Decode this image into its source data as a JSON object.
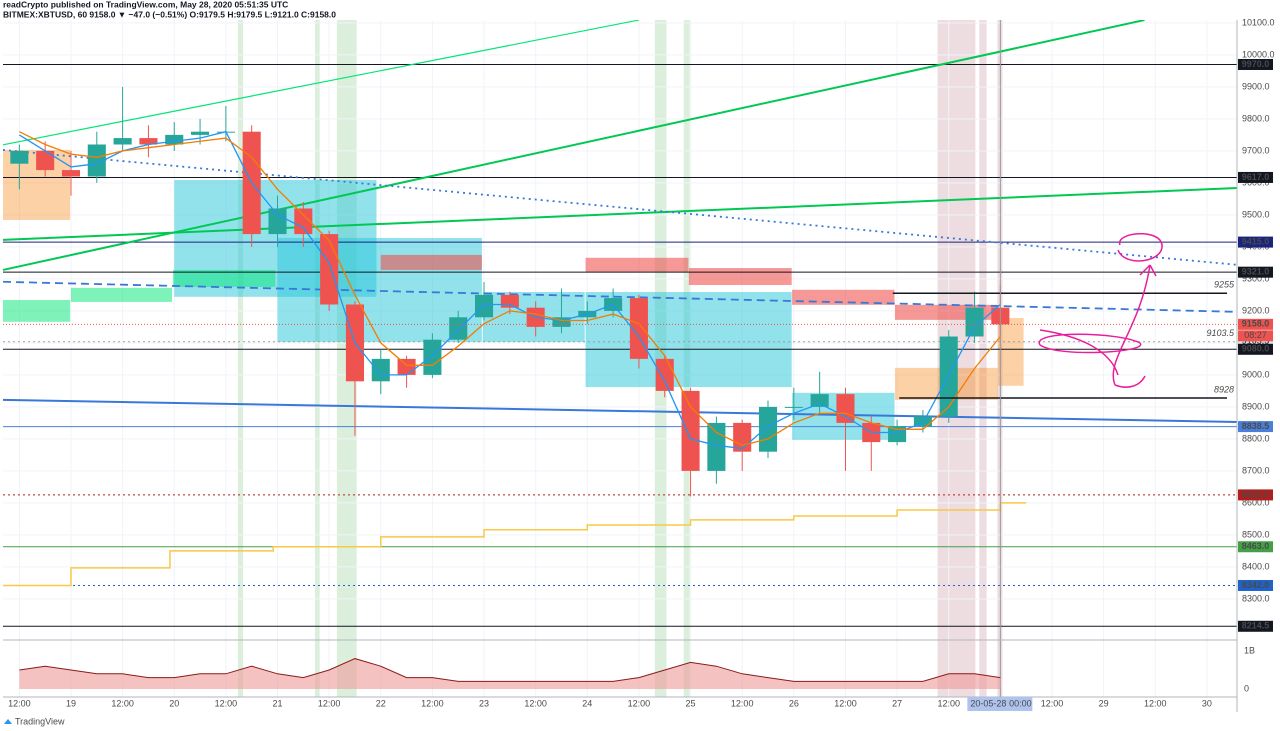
{
  "chart_data": {
    "type": "candlestick",
    "title": "readCrypto published on TradingView.com, May 28, 2020 05:51:35 UTC",
    "subtitle": "BITMEX:XBTUSD, 60  9158.0 ▼ −47.0 (−0.51%) O:9179.5 H:9179.5 L:9121.0 C:9158.0",
    "x": [
      12,
      18,
      24,
      30,
      36,
      42,
      48,
      54,
      60,
      66,
      72,
      78,
      84,
      90,
      96,
      102,
      108,
      114,
      120,
      126,
      132,
      138,
      144,
      150,
      156,
      162,
      168,
      174,
      180,
      186,
      192,
      198,
      204,
      210,
      216,
      222,
      228,
      234,
      240
    ],
    "open": [
      9660,
      9700,
      9640,
      9620,
      9720,
      9740,
      9720,
      9750,
      9760,
      9760,
      9440,
      9520,
      9440,
      9220,
      8980,
      9050,
      9000,
      9110,
      9180,
      9250,
      9210,
      9150,
      9180,
      9200,
      9240,
      9050,
      8950,
      8700,
      8850,
      8760,
      8900,
      8900,
      8940,
      8850,
      8790,
      8840,
      8870,
      9120,
      9210
    ],
    "high": [
      9720,
      9730,
      9700,
      9760,
      9900,
      9780,
      9790,
      9800,
      9840,
      9780,
      9560,
      9540,
      9450,
      9230,
      9080,
      9060,
      9130,
      9200,
      9290,
      9260,
      9230,
      9270,
      9230,
      9270,
      9250,
      9060,
      8960,
      8870,
      8860,
      8920,
      8960,
      9010,
      8960,
      8870,
      8860,
      8890,
      9140,
      9260,
      9280
    ],
    "low": [
      9580,
      9620,
      9560,
      9600,
      9700,
      9680,
      9700,
      9720,
      9730,
      9400,
      9400,
      9400,
      9200,
      8810,
      8940,
      8960,
      8990,
      9100,
      9170,
      9190,
      9120,
      9130,
      9160,
      9180,
      9020,
      8930,
      8620,
      8660,
      8700,
      8740,
      8860,
      8880,
      8700,
      8700,
      8780,
      8820,
      8850,
      9100,
      9121
    ],
    "close": [
      9700,
      9640,
      9620,
      9720,
      9740,
      9720,
      9750,
      9760,
      9760,
      9440,
      9520,
      9440,
      9220,
      8980,
      9050,
      9000,
      9110,
      9180,
      9250,
      9210,
      9150,
      9180,
      9200,
      9240,
      9050,
      8950,
      8700,
      8850,
      8760,
      8900,
      8900,
      8940,
      8850,
      8790,
      8840,
      8870,
      9120,
      9210,
      9158
    ],
    "up_color": "#26a69a",
    "down_color": "#ef5350",
    "xlim": [
      8.2,
      295
    ],
    "xticks": [
      {
        "value": 12,
        "label": "12:00"
      },
      {
        "value": 24,
        "label": "19"
      },
      {
        "value": 36,
        "label": "12:00"
      },
      {
        "value": 48,
        "label": "20"
      },
      {
        "value": 60,
        "label": "12:00"
      },
      {
        "value": 72,
        "label": "21"
      },
      {
        "value": 84,
        "label": "12:00"
      },
      {
        "value": 96,
        "label": "22"
      },
      {
        "value": 108,
        "label": "12:00"
      },
      {
        "value": 120,
        "label": "23"
      },
      {
        "value": 132,
        "label": "12:00"
      },
      {
        "value": 144,
        "label": "24"
      },
      {
        "value": 156,
        "label": "12:00"
      },
      {
        "value": 168,
        "label": "25"
      },
      {
        "value": 180,
        "label": "12:00"
      },
      {
        "value": 192,
        "label": "26"
      },
      {
        "value": 204,
        "label": "12:00"
      },
      {
        "value": 216,
        "label": "27"
      },
      {
        "value": 228,
        "label": "12:00"
      },
      {
        "value": 252,
        "label": "12:00"
      },
      {
        "value": 264,
        "label": "29"
      },
      {
        "value": 276,
        "label": "12:00"
      },
      {
        "value": 288,
        "label": "30"
      }
    ],
    "ylim": [
      8181,
      10109
    ],
    "yticks": [
      {
        "value": 8300,
        "label": "8300.0"
      },
      {
        "value": 8400,
        "label": "8400.0"
      },
      {
        "value": 8500,
        "label": "8500.0"
      },
      {
        "value": 8600,
        "label": "8600.0"
      },
      {
        "value": 8700,
        "label": "8700.0"
      },
      {
        "value": 8800,
        "label": "8800.0"
      },
      {
        "value": 8900,
        "label": "8900.0"
      },
      {
        "value": 9000,
        "label": "9000.0"
      },
      {
        "value": 9100,
        "label": "9100.0"
      },
      {
        "value": 9200,
        "label": "9200.0"
      },
      {
        "value": 9300,
        "label": "9300.0"
      },
      {
        "value": 9400,
        "label": "9400.0"
      },
      {
        "value": 9500,
        "label": "9500.0"
      },
      {
        "value": 9600,
        "label": "9600.0"
      },
      {
        "value": 9700,
        "label": "9700.0"
      },
      {
        "value": 9800,
        "label": "9800.0"
      },
      {
        "value": 9900,
        "label": "9900.0"
      },
      {
        "value": 10000,
        "label": "10000.0"
      },
      {
        "value": 10100,
        "label": "10100.0"
      }
    ],
    "grid": true,
    "highlights": [
      {
        "x": [
          62.8,
          64
        ],
        "color": "rgba(76,175,80,0.2)"
      },
      {
        "x": [
          80.7,
          81.8
        ],
        "color": "rgba(76,175,80,0.2)"
      },
      {
        "x": [
          85.8,
          90.4
        ],
        "color": "rgba(76,175,80,0.2)"
      },
      {
        "x": [
          159.7,
          162.4
        ],
        "color": "rgba(76,175,80,0.2)"
      },
      {
        "x": [
          166.4,
          167.8
        ],
        "color": "rgba(76,175,80,0.2)"
      },
      {
        "x": [
          225.4,
          234.2
        ],
        "color": "rgba(183,120,130,0.25)"
      },
      {
        "x": [
          235.1,
          236.8
        ],
        "color": "rgba(183,120,130,0.25)"
      },
      {
        "x": [
          239.3,
          240.5
        ],
        "color": "rgba(183,120,130,0.25)"
      }
    ],
    "zones": [
      {
        "x": [
          48,
          95
        ],
        "y": [
          9244,
          9609
        ],
        "color": "rgba(38,198,218,0.5)"
      },
      {
        "x": [
          72,
          119.5
        ],
        "y": [
          9103,
          9428
        ],
        "color": "rgba(38,198,218,0.5)"
      },
      {
        "x": [
          119.7,
          143.4
        ],
        "y": [
          9103,
          9259
        ],
        "color": "rgba(38,198,218,0.5)"
      },
      {
        "x": [
          143.6,
          191.5
        ],
        "y": [
          8962,
          9259
        ],
        "color": "rgba(38,198,218,0.5)"
      },
      {
        "x": [
          191.6,
          215.4
        ],
        "y": [
          8797,
          8944
        ],
        "color": "rgba(38,198,218,0.5)"
      },
      {
        "x": [
          96,
          119.5
        ],
        "y": [
          9328,
          9375
        ],
        "color": "rgba(239,83,80,0.6)"
      },
      {
        "x": [
          143.6,
          167.5
        ],
        "y": [
          9322,
          9366
        ],
        "color": "rgba(239,83,80,0.6)"
      },
      {
        "x": [
          167.6,
          191.5
        ],
        "y": [
          9281,
          9334
        ],
        "color": "rgba(239,83,80,0.6)"
      },
      {
        "x": [
          191.6,
          215.4
        ],
        "y": [
          9219,
          9266
        ],
        "color": "rgba(239,83,80,0.6)"
      },
      {
        "x": [
          215.5,
          239.4
        ],
        "y": [
          9172,
          9219
        ],
        "color": "rgba(239,83,80,0.6)"
      },
      {
        "x": [
          8.2,
          23.8
        ],
        "y": [
          9484,
          9703
        ],
        "color": "rgba(245,124,0,0.35)"
      },
      {
        "x": [
          215.5,
          239.4
        ],
        "y": [
          8922,
          9022
        ],
        "color": "rgba(245,124,0,0.35)"
      },
      {
        "x": [
          239.5,
          245.4
        ],
        "y": [
          8966,
          9178
        ],
        "color": "rgba(245,124,0,0.35)"
      },
      {
        "x": [
          8.2,
          23.8
        ],
        "y": [
          9166,
          9234
        ],
        "color": "rgba(0,230,118,0.5)"
      },
      {
        "x": [
          24,
          47.5
        ],
        "y": [
          9228,
          9272
        ],
        "color": "rgba(0,230,118,0.5)"
      },
      {
        "x": [
          47.7,
          71.5
        ],
        "y": [
          9275,
          9328
        ],
        "color": "rgba(0,230,118,0.5)"
      }
    ],
    "trendlines": [
      {
        "x": [
          8.2,
          156
        ],
        "values": [
          9719,
          10109
        ],
        "color": "#00e676",
        "width": 1.2,
        "dash": "none"
      },
      {
        "x": [
          8.2,
          273.5
        ],
        "values": [
          9328,
          10109
        ],
        "color": "#00c853",
        "width": 2,
        "dash": "none"
      },
      {
        "x": [
          8.2,
          295
        ],
        "values": [
          9422,
          9584
        ],
        "color": "#00c853",
        "width": 2,
        "dash": "none"
      },
      {
        "x": [
          8.2,
          295
        ],
        "values": [
          9703,
          9344
        ],
        "color": "#3a78d8",
        "width": 1.8,
        "dash": "2 4"
      },
      {
        "x": [
          8.2,
          295
        ],
        "values": [
          9291,
          9197
        ],
        "color": "#3a78d8",
        "width": 1.8,
        "dash": "8 5"
      },
      {
        "x": [
          8.2,
          295
        ],
        "values": [
          8922,
          8853
        ],
        "color": "#3a78d8",
        "width": 2,
        "dash": "none"
      }
    ],
    "moving_averages": [
      {
        "color": "#2196f3",
        "values": [
          9750,
          9700,
          9650,
          9660,
          9700,
          9720,
          9730,
          9740,
          9760,
          9600,
          9500,
          9460,
          9350,
          9100,
          9000,
          9000,
          9060,
          9140,
          9220,
          9220,
          9180,
          9170,
          9190,
          9220,
          9120,
          8980,
          8800,
          8780,
          8770,
          8840,
          8880,
          8910,
          8870,
          8820,
          8820,
          8850,
          9000,
          9150,
          9220
        ]
      },
      {
        "color": "#f57c00",
        "values": [
          9760,
          9720,
          9690,
          9680,
          9700,
          9710,
          9720,
          9730,
          9740,
          9680,
          9580,
          9500,
          9420,
          9250,
          9100,
          9030,
          9030,
          9090,
          9160,
          9200,
          9190,
          9170,
          9170,
          9190,
          9160,
          9060,
          8900,
          8820,
          8780,
          8800,
          8850,
          8880,
          8880,
          8850,
          8830,
          8830,
          8900,
          9020,
          9120
        ]
      }
    ],
    "step_line": {
      "color": "#f9c846",
      "x": [
        8.2,
        24,
        47,
        71,
        96,
        120,
        144,
        168,
        192,
        216,
        240
      ],
      "values": [
        8342,
        8397,
        8450,
        8463,
        8494,
        8516,
        8531,
        8547,
        8559,
        8578,
        8600
      ]
    },
    "levels": [
      {
        "value": 9970,
        "label": "9970.0",
        "color": "#131722",
        "style": "solid"
      },
      {
        "value": 9617,
        "label": "9617.0",
        "color": "#131722",
        "style": "solid"
      },
      {
        "value": 9415,
        "label": "9415.0",
        "color": "#1a237e",
        "style": "solid"
      },
      {
        "value": 9321,
        "label": "9321.0",
        "color": "#131722",
        "style": "solid"
      },
      {
        "value": 9103.5,
        "color": "#9e9e9e",
        "style": "dotted"
      },
      {
        "value": 9080,
        "label": "9080.0",
        "color": "#131722",
        "style": "solid"
      },
      {
        "value": 8838.5,
        "label": "8838.5",
        "color": "#4a7fd9",
        "style": "solid"
      },
      {
        "value": 8625,
        "label": "8625.0",
        "color": "#b71c1c",
        "style": "dotted"
      },
      {
        "value": 8463,
        "label": "8463.0",
        "color": "#43a047",
        "style": "solid"
      },
      {
        "value": 8342,
        "label": "8342.0",
        "color": "#1e63c9",
        "style": "dotted"
      },
      {
        "value": 8214.5,
        "label": "8214.5",
        "color": "#131722",
        "style": "solid"
      }
    ],
    "current_price": {
      "value": 9158,
      "label": "9158.0",
      "countdown": "08:27",
      "color": "#ef5350"
    },
    "annotations": [
      {
        "value": 9255,
        "x": 215
      },
      {
        "value": 8928,
        "x": 216.5
      },
      {
        "value": 9103.5
      }
    ],
    "crosshair": {
      "x": 240,
      "date_label": "20-05-28",
      "time_label": "00:00"
    },
    "lower_pane": {
      "ylim": [
        -210000000,
        1210000000
      ],
      "yticks": [
        0,
        {
          "value": 1000000000,
          "label": "1B"
        }
      ],
      "color": "#ef9a9a",
      "line_color": "#8b1a1a",
      "values": [
        500000000,
        600000000,
        500000000,
        400000000,
        400000000,
        300000000,
        300000000,
        400000000,
        400000000,
        600000000,
        400000000,
        300000000,
        500000000,
        800000000,
        600000000,
        300000000,
        300000000,
        200000000,
        200000000,
        200000000,
        200000000,
        200000000,
        200000000,
        200000000,
        300000000,
        500000000,
        700000000,
        600000000,
        400000000,
        300000000,
        200000000,
        200000000,
        200000000,
        200000000,
        200000000,
        200000000,
        400000000,
        400000000,
        300000000
      ]
    }
  },
  "footer": {
    "logo": "TradingView"
  }
}
